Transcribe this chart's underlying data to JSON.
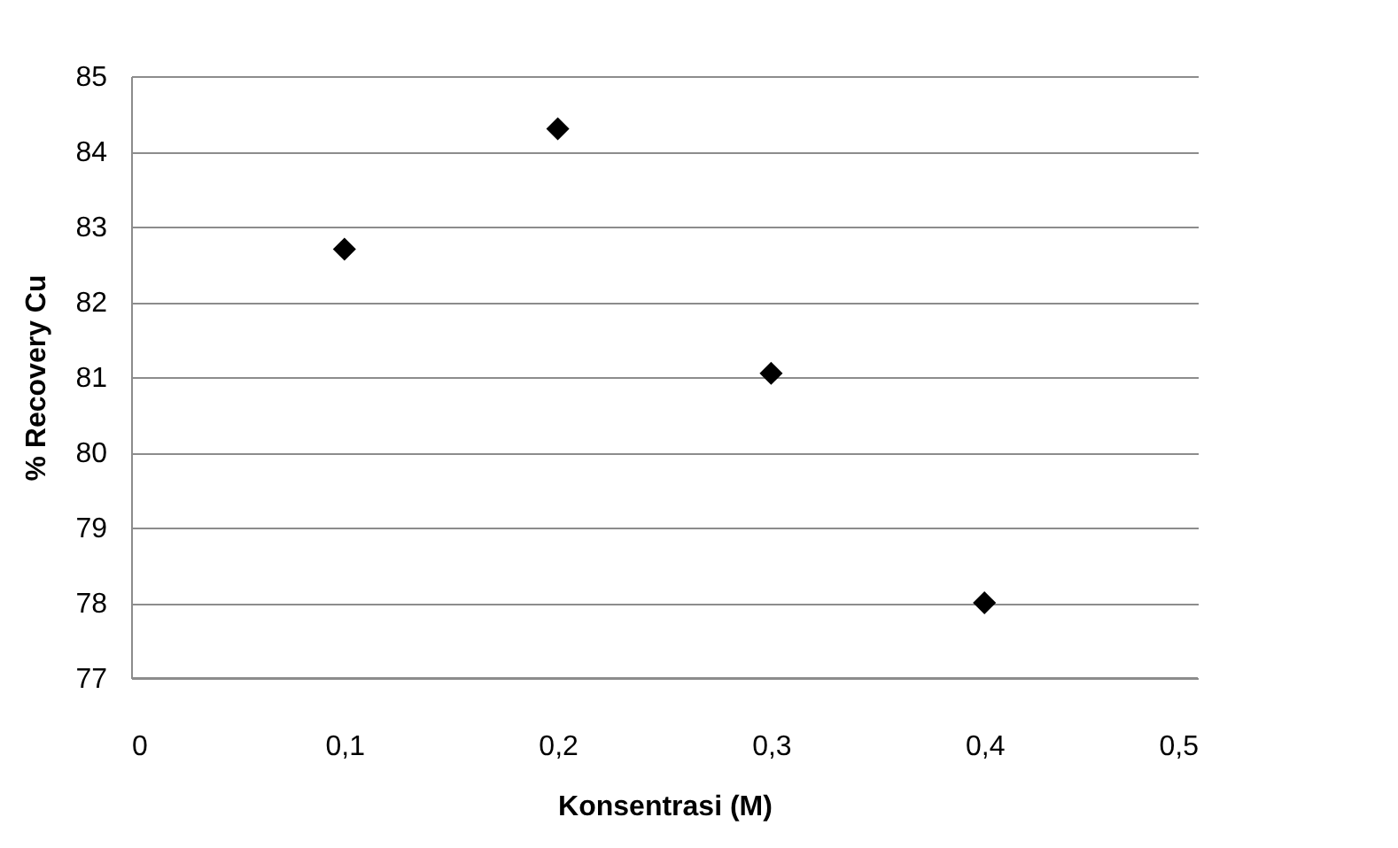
{
  "chart_data": {
    "type": "scatter",
    "xlabel": "Konsentrasi (M)",
    "ylabel": "% Recovery  Cu",
    "x": [
      0.1,
      0.2,
      0.3,
      0.4
    ],
    "series": [
      {
        "color": "#000000",
        "values": [
          82.7,
          84.3,
          81.05,
          78.0
        ]
      }
    ],
    "xlim": [
      0,
      0.5
    ],
    "xticks": [
      0,
      {
        "value": 0.1,
        "label": "0,1"
      },
      {
        "value": 0.2,
        "label": "0,2"
      },
      {
        "value": 0.3,
        "label": "0,3"
      },
      {
        "value": 0.4,
        "label": "0,4"
      },
      {
        "value": 0.5,
        "label": "0,5"
      }
    ],
    "ylim": [
      77,
      85
    ],
    "yticks": [
      77,
      78,
      79,
      80,
      81,
      82,
      83,
      84,
      85
    ],
    "grid": "y",
    "marker": "diamond",
    "legend": false
  }
}
